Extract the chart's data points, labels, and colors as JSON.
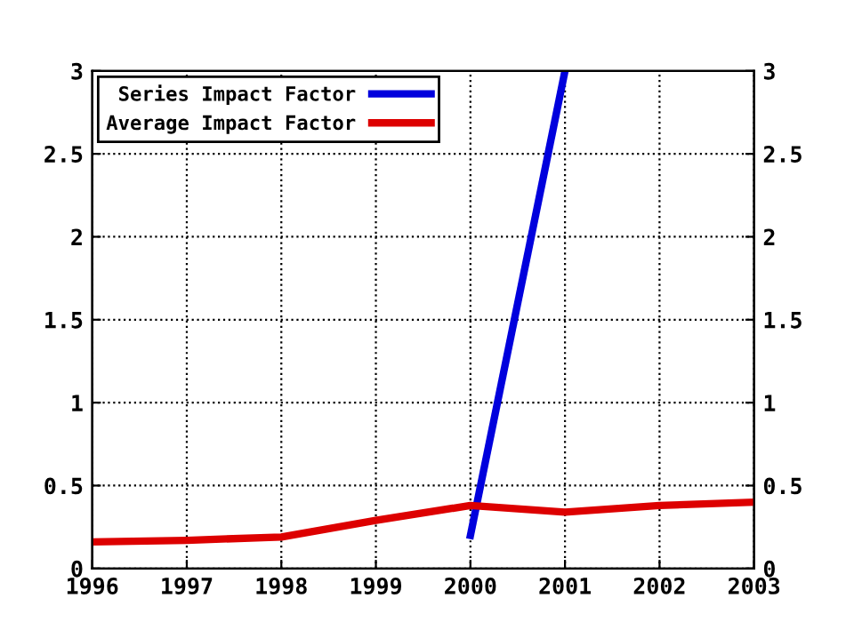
{
  "chart_data": {
    "type": "line",
    "x": [
      1996,
      1997,
      1998,
      1999,
      2000,
      2001,
      2002,
      2003
    ],
    "series": [
      {
        "name": "Series Impact Factor",
        "color": "#0000dd",
        "x": [
          2000,
          2001
        ],
        "values": [
          0.2,
          3.0
        ]
      },
      {
        "name": "Average Impact Factor",
        "color": "#dd0000",
        "values": [
          0.16,
          0.17,
          0.19,
          0.29,
          0.38,
          0.34,
          0.38,
          0.4
        ]
      }
    ],
    "xlim": [
      1996,
      2003
    ],
    "xticks": [
      1996,
      1997,
      1998,
      1999,
      2000,
      2001,
      2002,
      2003
    ],
    "ylim": [
      0,
      3
    ],
    "yticks": [
      0,
      0.5,
      1,
      1.5,
      2,
      2.5,
      3
    ],
    "y2lim": [
      0,
      3
    ],
    "y2ticks": [
      0,
      0.5,
      1,
      1.5,
      2,
      2.5,
      3
    ],
    "grid": true,
    "legend": "top left",
    "line_style": "solid",
    "marker": "none"
  }
}
